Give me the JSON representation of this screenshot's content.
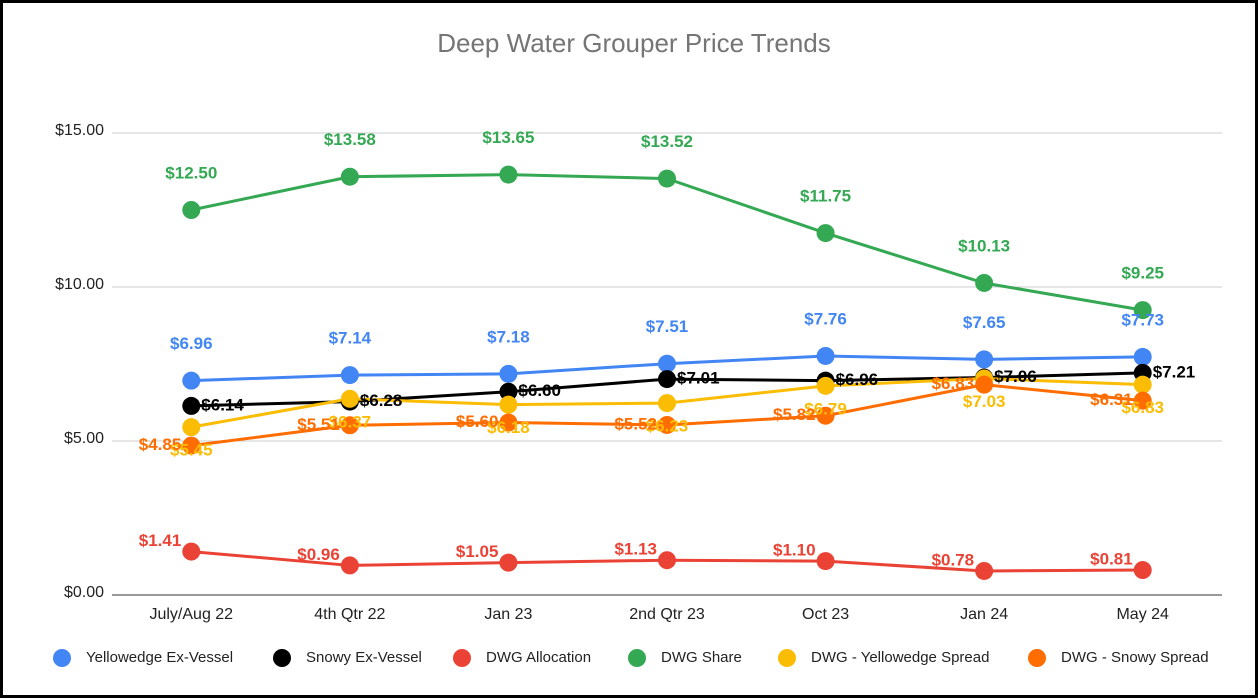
{
  "chart_data": {
    "type": "line",
    "title": "Deep Water Grouper Price Trends",
    "categories": [
      "July/Aug 22",
      "4th Qtr 22",
      "Jan 23",
      "2nd Qtr 23",
      "Oct 23",
      "Jan 24",
      "May 24"
    ],
    "ylim": [
      0,
      15
    ],
    "yticks": [
      {
        "value": 0,
        "label": "$0.00"
      },
      {
        "value": 5,
        "label": "$5.00"
      },
      {
        "value": 10,
        "label": "$10.00"
      },
      {
        "value": 15,
        "label": "$15.00"
      }
    ],
    "grid": true,
    "legend": "bottom",
    "series": [
      {
        "name": "Yellowedge Ex-Vessel",
        "color": "#4285f4",
        "values": [
          6.96,
          7.14,
          7.18,
          7.51,
          7.76,
          7.65,
          7.73
        ],
        "value_labels": [
          "$6.96",
          "$7.14",
          "$7.18",
          "$7.51",
          "$7.76",
          "$7.65",
          "$7.73"
        ]
      },
      {
        "name": "Snowy Ex-Vessel",
        "color": "#000000",
        "values": [
          6.14,
          6.28,
          6.6,
          7.01,
          6.96,
          7.06,
          7.21
        ],
        "value_labels": [
          "$6.14",
          "$6.28",
          "$6.60",
          "$7.01",
          "$6.96",
          "$7.06",
          "$7.21"
        ]
      },
      {
        "name": "DWG Allocation",
        "color": "#ea4335",
        "values": [
          1.41,
          0.96,
          1.05,
          1.13,
          1.1,
          0.78,
          0.81
        ],
        "value_labels": [
          "$1.41",
          "$0.96",
          "$1.05",
          "$1.13",
          "$1.10",
          "$0.78",
          "$0.81"
        ]
      },
      {
        "name": "DWG Share",
        "color": "#34a853",
        "values": [
          12.5,
          13.58,
          13.65,
          13.52,
          11.75,
          10.13,
          9.25
        ],
        "value_labels": [
          "$12.50",
          "$13.58",
          "$13.65",
          "$13.52",
          "$11.75",
          "$10.13",
          "$9.25"
        ]
      },
      {
        "name": "DWG - Yellowedge Spread",
        "color": "#fbbc04",
        "values": [
          5.45,
          6.37,
          6.18,
          6.23,
          6.79,
          7.03,
          6.83
        ],
        "value_labels": [
          "$5.45",
          "$6.37",
          "$6.18",
          "$6.23",
          "$6.79",
          "$7.03",
          "$6.83"
        ]
      },
      {
        "name": "DWG - Snowy Spread",
        "color": "#ff6d01",
        "values": [
          4.85,
          5.51,
          5.6,
          5.52,
          5.82,
          6.83,
          6.31
        ],
        "value_labels": [
          "$4.85",
          "$5.51",
          "$5.60",
          "$5.52",
          "$5.82",
          "$6.83",
          "$6.31"
        ]
      }
    ]
  }
}
